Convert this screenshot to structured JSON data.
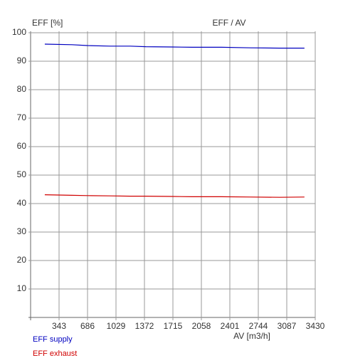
{
  "chart_data": {
    "type": "line",
    "title": "EFF / AV",
    "y_label": "EFF [%]",
    "x_label": "AV [m3/h]",
    "x": [
      171,
      500,
      686,
      960,
      1200,
      1390,
      1700,
      1945,
      2300,
      2650,
      3000,
      3300
    ],
    "series": [
      {
        "name": "EFF supply",
        "color": "#0000c0",
        "values": [
          96.0,
          95.8,
          95.5,
          95.3,
          95.3,
          95.1,
          95.0,
          94.9,
          94.9,
          94.7,
          94.6,
          94.6
        ]
      },
      {
        "name": "EFF exhaust",
        "color": "#d00000",
        "values": [
          43.1,
          42.9,
          42.8,
          42.7,
          42.6,
          42.6,
          42.5,
          42.4,
          42.4,
          42.3,
          42.2,
          42.3
        ]
      }
    ],
    "xlim": [
      0,
      3430
    ],
    "xticks": [
      343,
      686,
      1029,
      1372,
      1715,
      2058,
      2401,
      2744,
      3087,
      3430
    ],
    "ylim": [
      0,
      100
    ],
    "yticks": [
      10,
      20,
      30,
      40,
      50,
      60,
      70,
      80,
      90,
      100
    ],
    "grid": true
  }
}
